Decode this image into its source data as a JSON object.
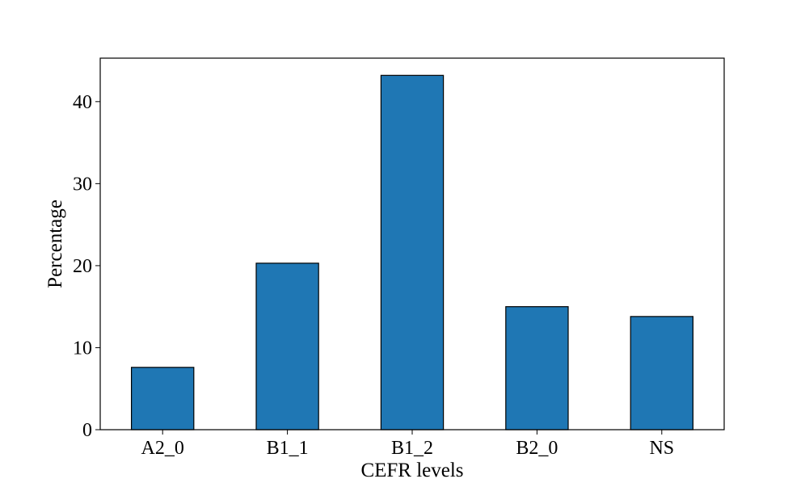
{
  "chart_data": {
    "type": "bar",
    "title": "",
    "xlabel": "CEFR levels",
    "ylabel": "Percentage",
    "categories": [
      "A2_0",
      "B1_1",
      "B1_2",
      "B2_0",
      "NS"
    ],
    "values": [
      7.6,
      20.3,
      43.2,
      15.0,
      13.8
    ],
    "ylim": [
      0,
      45.3
    ],
    "yticks": [
      0,
      10,
      20,
      30,
      40
    ],
    "grid": false,
    "legend": "none",
    "bar_color": "#1f77b4",
    "edge_color": "#000000"
  }
}
